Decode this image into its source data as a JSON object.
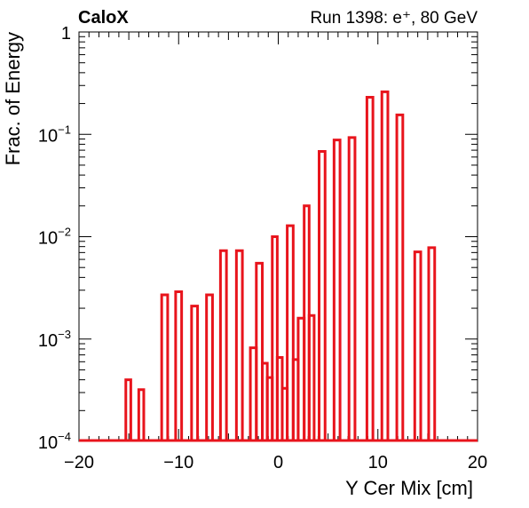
{
  "header": {
    "experiment": "CaloX",
    "run_info": "Run 1398: e⁺, 80 GeV"
  },
  "chart_data": {
    "type": "histogram",
    "xlabel": "Y Cer Mix [cm]",
    "ylabel": "Frac. of Energy",
    "xlim": [
      -20,
      20
    ],
    "ylim": [
      0.0001,
      1
    ],
    "yscale": "log",
    "grid": false,
    "x_tick_labels": [
      "−20",
      "−10",
      "0",
      "10",
      "20"
    ],
    "x_ticks": [
      -20,
      -10,
      0,
      10,
      20
    ],
    "y_ticks": [
      0.0001,
      0.001,
      0.01,
      0.1,
      1
    ],
    "y_tick_labels": [
      {
        "base": "10",
        "exp": "−4"
      },
      {
        "base": "10",
        "exp": "−3"
      },
      {
        "base": "10",
        "exp": "−2"
      },
      {
        "base": "10",
        "exp": "−1"
      },
      {
        "base": "1",
        "exp": ""
      }
    ],
    "series": [
      {
        "color": "#e8141c",
        "bins": [
          {
            "x0": -15.3,
            "x1": -14.8,
            "value": 0.0004
          },
          {
            "x0": -14.0,
            "x1": -13.5,
            "value": 0.00032
          },
          {
            "x0": -11.7,
            "x1": -11.1,
            "value": 0.0027
          },
          {
            "x0": -10.3,
            "x1": -9.7,
            "value": 0.0029
          },
          {
            "x0": -8.7,
            "x1": -8.1,
            "value": 0.0021
          },
          {
            "x0": -7.2,
            "x1": -6.6,
            "value": 0.0027
          },
          {
            "x0": -5.8,
            "x1": -5.2,
            "value": 0.0073
          },
          {
            "x0": -4.2,
            "x1": -3.6,
            "value": 0.0073
          },
          {
            "x0": -2.8,
            "x1": -2.2,
            "value": 0.00082
          },
          {
            "x0": -2.2,
            "x1": -1.6,
            "value": 0.0055
          },
          {
            "x0": -1.6,
            "x1": -1.1,
            "value": 0.00058
          },
          {
            "x0": -1.1,
            "x1": -0.6,
            "value": 0.00042
          },
          {
            "x0": -0.6,
            "x1": -0.1,
            "value": 0.01
          },
          {
            "x0": -0.1,
            "x1": 0.4,
            "value": 0.00066
          },
          {
            "x0": 0.4,
            "x1": 0.9,
            "value": 0.00033
          },
          {
            "x0": 0.9,
            "x1": 1.5,
            "value": 0.0128
          },
          {
            "x0": 1.5,
            "x1": 2.0,
            "value": 0.00063
          },
          {
            "x0": 2.0,
            "x1": 2.6,
            "value": 0.0016
          },
          {
            "x0": 2.6,
            "x1": 3.1,
            "value": 0.02
          },
          {
            "x0": 3.1,
            "x1": 3.6,
            "value": 0.0017
          },
          {
            "x0": 4.1,
            "x1": 4.7,
            "value": 0.068
          },
          {
            "x0": 5.6,
            "x1": 6.2,
            "value": 0.088
          },
          {
            "x0": 7.1,
            "x1": 7.7,
            "value": 0.093
          },
          {
            "x0": 8.9,
            "x1": 9.5,
            "value": 0.23
          },
          {
            "x0": 10.4,
            "x1": 11.0,
            "value": 0.26
          },
          {
            "x0": 11.9,
            "x1": 12.5,
            "value": 0.155
          },
          {
            "x0": 13.7,
            "x1": 14.3,
            "value": 0.0071
          },
          {
            "x0": 15.1,
            "x1": 15.7,
            "value": 0.0078
          }
        ]
      }
    ]
  }
}
